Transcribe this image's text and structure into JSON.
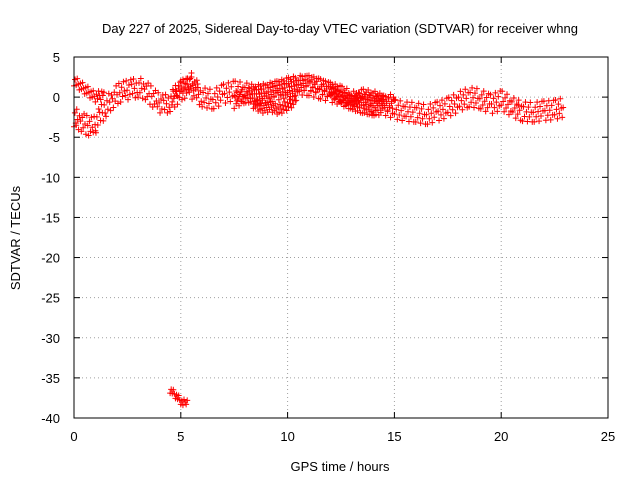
{
  "chart_data": {
    "type": "scatter",
    "title": "Day 227 of 2025, Sidereal Day-to-day VTEC variation (SDTVAR) for receiver whng",
    "xlabel": "GPS time / hours",
    "ylabel": "SDTVAR / TECUs",
    "xlim": [
      0,
      25
    ],
    "ylim": [
      -40,
      5
    ],
    "x_ticks": [
      0,
      5,
      10,
      15,
      20,
      25
    ],
    "y_ticks": [
      5,
      0,
      -5,
      -10,
      -15,
      -20,
      -25,
      -30,
      -35,
      -40
    ],
    "grid": true,
    "marker": "+",
    "series": [
      {
        "name": "SDTVAR",
        "color": "#ff0000",
        "bands": [
          {
            "x": [
              0.0,
              0.3,
              0.6,
              0.9,
              1.2,
              1.5,
              1.8,
              2.1,
              2.4,
              2.7,
              3.0,
              3.3,
              3.6,
              3.9,
              4.2,
              4.5,
              4.8,
              5.1,
              5.4,
              5.7,
              6.0,
              6.5,
              7.0,
              7.5,
              8.0,
              8.5,
              9.0,
              9.5,
              10.0,
              10.5,
              11.0,
              11.5,
              12.0,
              12.5,
              13.0,
              13.5,
              14.0,
              14.5,
              15.0,
              15.5,
              16.0,
              16.5,
              17.0,
              17.5,
              18.0,
              18.5,
              19.0,
              19.5,
              20.0,
              20.5,
              21.0,
              21.5,
              22.0,
              22.5,
              22.9
            ],
            "y": [
              -2.5,
              -3.0,
              -3.5,
              -3.8,
              -2.5,
              -1.2,
              -0.2,
              0.5,
              0.8,
              1.0,
              1.2,
              1.0,
              0.2,
              -0.6,
              -1.0,
              -0.6,
              0.2,
              1.0,
              1.2,
              0.6,
              0.0,
              -0.3,
              0.4,
              0.8,
              0.6,
              0.3,
              0.5,
              0.8,
              1.2,
              1.5,
              1.4,
              1.0,
              0.6,
              0.2,
              -0.4,
              -0.8,
              -1.1,
              -1.0,
              -1.5,
              -1.8,
              -1.9,
              -2.2,
              -1.8,
              -1.3,
              -0.6,
              0.0,
              -0.2,
              -0.9,
              -0.4,
              -1.2,
              -1.8,
              -1.9,
              -1.7,
              -1.6,
              -1.3
            ],
            "spread": 1.2
          },
          {
            "x": [
              0.0,
              0.2,
              0.4,
              0.6,
              0.8,
              1.0,
              1.2,
              1.4
            ],
            "y": [
              2.0,
              1.6,
              1.2,
              0.8,
              0.4,
              0.0,
              0.2,
              0.6
            ],
            "spread": 0.6
          },
          {
            "x": [
              7.5,
              8.0,
              8.5,
              9.0,
              9.5,
              10.0,
              10.5,
              11.0,
              11.5,
              12.0,
              12.5,
              13.0,
              13.5,
              14.0,
              14.5,
              15.0
            ],
            "y": [
              -0.5,
              0.2,
              0.4,
              0.6,
              1.0,
              1.2,
              1.6,
              1.8,
              1.4,
              0.8,
              0.2,
              -0.6,
              -1.0,
              -1.4,
              -0.9,
              -0.4
            ],
            "spread": 0.9
          },
          {
            "x": [
              8.4,
              8.8,
              9.2,
              9.6,
              10.0,
              10.4
            ],
            "y": [
              -0.8,
              -1.4,
              -1.2,
              -1.6,
              -1.0,
              -0.4
            ],
            "spread": 0.6
          },
          {
            "x": [
              12.0,
              12.5,
              13.0,
              13.5,
              14.0,
              14.5
            ],
            "y": [
              0.8,
              0.0,
              -0.5,
              0.4,
              0.2,
              -0.3
            ],
            "spread": 0.6
          },
          {
            "x": [
              4.6,
              4.8,
              5.0,
              5.2,
              5.4,
              5.6,
              5.8
            ],
            "y": [
              0.2,
              0.8,
              1.2,
              1.4,
              1.8,
              1.6,
              1.2
            ],
            "spread": 0.8
          },
          {
            "x": [
              4.5,
              4.7,
              4.9,
              5.1,
              5.3
            ],
            "y": [
              -36.5,
              -37.0,
              -37.6,
              -38.2,
              -37.8
            ],
            "spread": 0.4
          }
        ],
        "points": [
          {
            "x": 5.5,
            "y": 3.0
          },
          {
            "x": 0.1,
            "y": -3.5
          },
          {
            "x": 1.0,
            "y": -4.2
          },
          {
            "x": 20.8,
            "y": -1.0
          }
        ]
      }
    ]
  }
}
